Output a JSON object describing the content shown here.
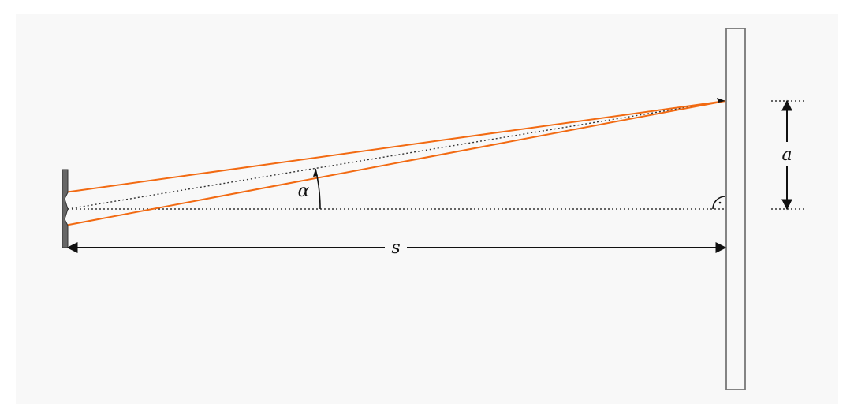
{
  "labels": {
    "distance": "s",
    "offset": "a",
    "angle": "α"
  },
  "colors": {
    "background": "#f8f8f8",
    "ray": "#f26a12",
    "line": "#111111",
    "slit": "#555555",
    "screen": "#777777",
    "dotted_guide": "#333333"
  }
}
